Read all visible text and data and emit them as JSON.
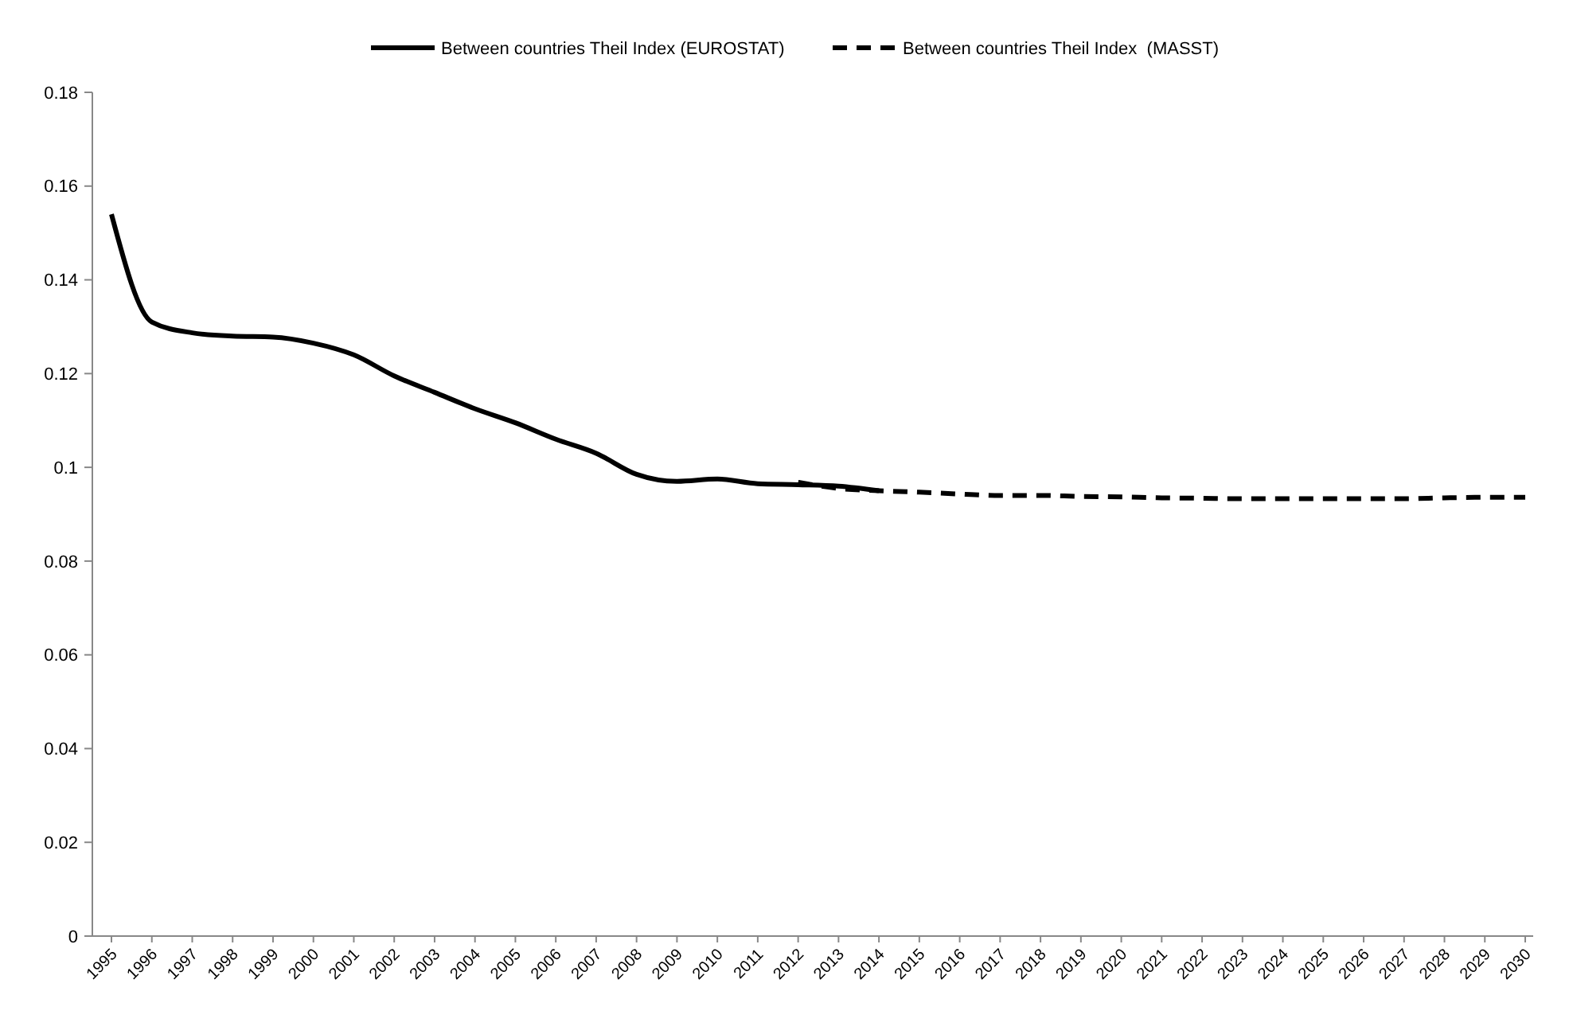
{
  "chart_data": {
    "type": "line",
    "categories": [
      "1995",
      "1996",
      "1997",
      "1998",
      "1999",
      "2000",
      "2001",
      "2002",
      "2003",
      "2004",
      "2005",
      "2006",
      "2007",
      "2008",
      "2009",
      "2010",
      "2011",
      "2012",
      "2013",
      "2014",
      "2015",
      "2016",
      "2017",
      "2018",
      "2019",
      "2020",
      "2021",
      "2022",
      "2023",
      "2024",
      "2025",
      "2026",
      "2027",
      "2028",
      "2029",
      "2030"
    ],
    "series": [
      {
        "name": "Between countries Theil Index (EUROSTAT)",
        "color": "#000000",
        "line_style": "solid",
        "values": [
          0.154,
          0.131,
          0.1287,
          0.128,
          0.1278,
          0.1265,
          0.124,
          0.1195,
          0.116,
          0.1125,
          0.1095,
          0.106,
          0.103,
          0.0985,
          0.097,
          0.0975,
          0.0965,
          0.0963,
          0.096,
          0.095,
          null,
          null,
          null,
          null,
          null,
          null,
          null,
          null,
          null,
          null,
          null,
          null,
          null,
          null,
          null,
          null
        ]
      },
      {
        "name": "Between countries Theil Index  (MASST)",
        "color": "#000000",
        "line_style": "dashed",
        "values": [
          null,
          null,
          null,
          null,
          null,
          null,
          null,
          null,
          null,
          null,
          null,
          null,
          null,
          null,
          null,
          null,
          null,
          0.0968,
          0.0955,
          0.095,
          0.0947,
          0.0943,
          0.094,
          0.094,
          0.0938,
          0.0937,
          0.0935,
          0.0934,
          0.0933,
          0.0933,
          0.0933,
          0.0933,
          0.0933,
          0.0935,
          0.0936,
          0.0936
        ]
      }
    ],
    "ylim": [
      0,
      0.18
    ],
    "yticks": [
      0,
      0.02,
      0.04,
      0.06,
      0.08,
      0.1,
      0.12,
      0.14,
      0.16,
      0.18
    ],
    "grid": false,
    "legend": "top"
  }
}
